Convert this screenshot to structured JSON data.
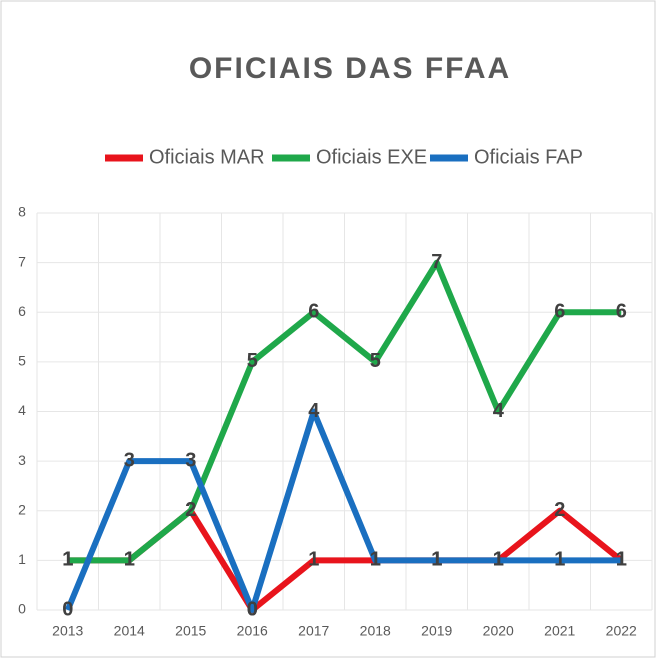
{
  "chart_data": {
    "type": "line",
    "title": "OFICIAIS DAS FFAA",
    "categories": [
      "2013",
      "2014",
      "2015",
      "2016",
      "2017",
      "2018",
      "2019",
      "2020",
      "2021",
      "2022"
    ],
    "series": [
      {
        "name": "Oficiais MAR",
        "color": "#e8141c",
        "values": [
          1,
          1,
          2,
          0,
          1,
          1,
          1,
          1,
          2,
          1
        ]
      },
      {
        "name": "Oficiais EXE",
        "color": "#1fa84a",
        "values": [
          1,
          1,
          2,
          5,
          6,
          5,
          7,
          4,
          6,
          6
        ]
      },
      {
        "name": "Oficiais FAP",
        "color": "#1a6fc0",
        "values": [
          0,
          3,
          3,
          0,
          4,
          1,
          1,
          1,
          1,
          1
        ]
      }
    ],
    "ylim": [
      0,
      8
    ],
    "yticks": [
      0,
      1,
      2,
      3,
      4,
      5,
      6,
      7,
      8
    ],
    "grid": true,
    "legend": "top"
  }
}
